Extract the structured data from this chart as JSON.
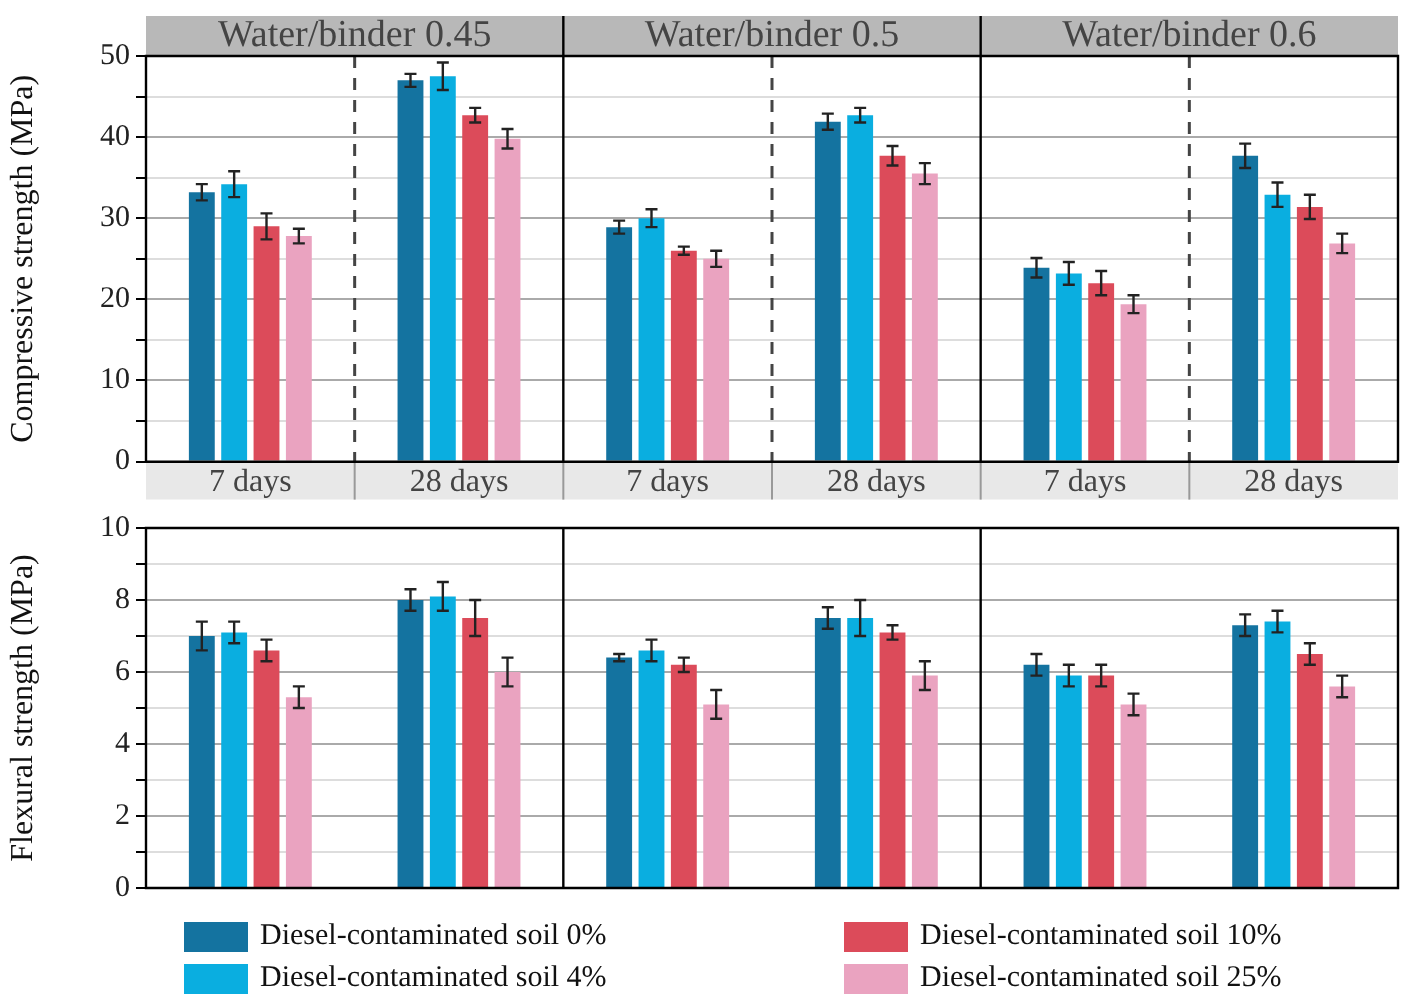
{
  "chart_data": [
    {
      "type": "bar",
      "ylabel": "Compressive strength (MPa)",
      "categories": [
        "7 days",
        "28 days",
        "7 days",
        "28 days",
        "7 days",
        "28 days"
      ],
      "annotations": [
        "Water/binder 0.45",
        "Water/binder 0.5",
        "Water/binder 0.6"
      ],
      "ylim": [
        0,
        50
      ],
      "yticks": [
        0,
        {
          "value": 5,
          "label": null
        },
        10,
        {
          "value": 15,
          "label": null
        },
        20,
        {
          "value": 25,
          "label": null
        },
        30,
        {
          "value": 35,
          "label": null
        },
        40,
        {
          "value": 45,
          "label": null
        },
        50
      ],
      "grid": "y",
      "series": [
        {
          "color": "#1473a0",
          "values": [
            33.2,
            47,
            28.9,
            41.9,
            23.9,
            37.7
          ],
          "errors": [
            1,
            0.8,
            0.8,
            1,
            1.2,
            1.5
          ]
        },
        {
          "color": "#0aaee0",
          "values": [
            34.2,
            47.5,
            30,
            42.7,
            23.2,
            32.9
          ],
          "errors": [
            1.6,
            1.7,
            1.1,
            0.9,
            1.4,
            1.5
          ]
        },
        {
          "color": "#dc4b5a",
          "values": [
            29,
            42.7,
            26,
            37.7,
            22,
            31.4
          ],
          "errors": [
            1.6,
            0.9,
            0.5,
            1.2,
            1.5,
            1.5
          ]
        },
        {
          "color": "#eaa3c0",
          "values": [
            27.8,
            39.8,
            25,
            35.5,
            19.4,
            26.9
          ],
          "errors": [
            0.9,
            1.2,
            1,
            1.3,
            1.1,
            1.2
          ]
        }
      ]
    },
    {
      "type": "bar",
      "ylabel": "Flexural strength (MPa)",
      "categories": [
        null,
        null,
        null,
        null,
        null,
        null
      ],
      "ylim": [
        0,
        10
      ],
      "yticks": [
        0,
        {
          "value": 1,
          "label": null
        },
        2,
        {
          "value": 3,
          "label": null
        },
        4,
        {
          "value": 5,
          "label": null
        },
        6,
        {
          "value": 7,
          "label": null
        },
        8,
        {
          "value": 9,
          "label": null
        },
        10
      ],
      "grid": "y",
      "legend": "bottom",
      "tick_labels": "y",
      "series": [
        {
          "name": "Diesel-contaminated soil 0%",
          "color": "#1473a0",
          "values": [
            7,
            8,
            6.4,
            7.5,
            6.2,
            7.3
          ],
          "errors": [
            0.4,
            0.3,
            0.1,
            0.3,
            0.3,
            0.3
          ]
        },
        {
          "name": "Diesel-contaminated soil 4%",
          "color": "#0aaee0",
          "values": [
            7.1,
            8.1,
            6.6,
            7.5,
            5.9,
            7.4
          ],
          "errors": [
            0.3,
            0.4,
            0.3,
            0.5,
            0.3,
            0.3
          ]
        },
        {
          "name": "Diesel-contaminated soil 10%",
          "color": "#dc4b5a",
          "values": [
            6.6,
            7.5,
            6.2,
            7.1,
            5.9,
            6.5
          ],
          "errors": [
            0.3,
            0.5,
            0.2,
            0.2,
            0.3,
            0.3
          ]
        },
        {
          "name": "Diesel-contaminated soil 25%",
          "color": "#eaa3c0",
          "values": [
            5.3,
            6,
            5.1,
            5.9,
            5.1,
            5.6
          ],
          "errors": [
            0.3,
            0.4,
            0.4,
            0.4,
            0.3,
            0.3
          ]
        }
      ]
    }
  ]
}
